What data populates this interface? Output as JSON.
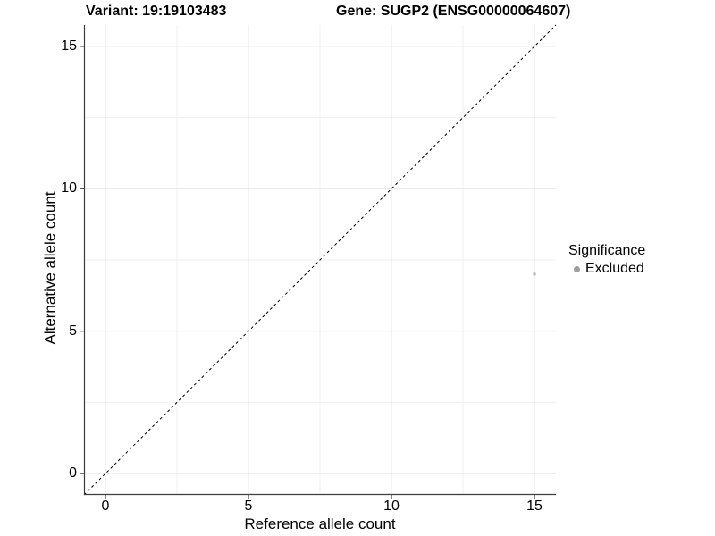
{
  "chart_data": {
    "type": "scatter",
    "title_left": "Variant: 19:19103483",
    "title_right": "Gene: SUGP2 (ENSG00000064607)",
    "xlabel": "Reference allele count",
    "ylabel": "Alternative allele count",
    "xlim": [
      -0.75,
      15.75
    ],
    "ylim": [
      -0.75,
      15.75
    ],
    "x_ticks": [
      0,
      5,
      10,
      15
    ],
    "y_ticks": [
      0,
      5,
      10,
      15
    ],
    "x_minor_ticks": [
      2.5,
      7.5,
      12.5
    ],
    "y_minor_ticks": [
      2.5,
      7.5,
      12.5
    ],
    "grid": true,
    "legend_position": "right",
    "identity_line": {
      "style": "dashed",
      "slope": 1,
      "intercept": 0,
      "color": "#000000"
    },
    "series": [
      {
        "name": "Excluded",
        "color": "#c3c3c3",
        "point_radius": 1.9,
        "points": [
          {
            "x": 15,
            "y": 7
          }
        ]
      }
    ],
    "legend": {
      "title": "Significance",
      "entries": [
        {
          "label": "Excluded",
          "color": "#9e9e9e"
        }
      ]
    },
    "colors": {
      "background": "#ffffff",
      "grid_major": "#e4e4e4",
      "grid_minor": "#efefef",
      "axis_line": "#3c3c3c",
      "tick_mark": "#3c3c3c",
      "text": "#000000"
    }
  }
}
